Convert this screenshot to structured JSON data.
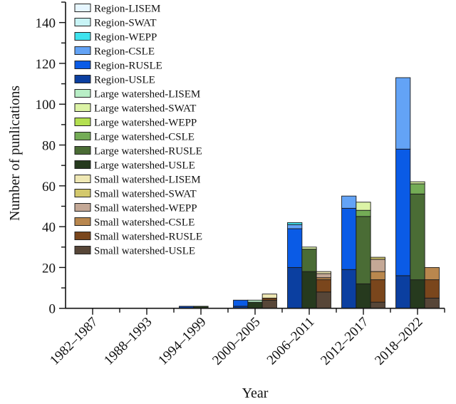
{
  "chart_data": {
    "type": "bar",
    "subtype": "grouped-stacked",
    "title": "",
    "xlabel": "Year",
    "ylabel": "Number of punlications",
    "ylim": [
      0,
      150
    ],
    "yticks": [
      0,
      20,
      40,
      60,
      80,
      100,
      120,
      140
    ],
    "y_minor_step": 10,
    "grid": false,
    "legend_placement": "top-left inside plot",
    "categories": [
      "1982–1987",
      "1988–1993",
      "1994–1999",
      "2000–2005",
      "2006–2011",
      "2012–2017",
      "2018–2022"
    ],
    "groups": [
      "Region",
      "Large watershed",
      "Small watershed"
    ],
    "models": [
      "USLE",
      "RUSLE",
      "CSLE",
      "WEPP",
      "SWAT",
      "LISEM"
    ],
    "legend": [
      {
        "label": "Region-LISEM",
        "color": "#e6f6ff"
      },
      {
        "label": "Region-SWAT",
        "color": "#c8f4f6"
      },
      {
        "label": "Region-WEPP",
        "color": "#3fe3ee"
      },
      {
        "label": "Region-CSLE",
        "color": "#63a3f6"
      },
      {
        "label": "Region-RUSLE",
        "color": "#0a5be6"
      },
      {
        "label": "Region-USLE",
        "color": "#0b3fa0"
      },
      {
        "label": "Large watershed-LISEM",
        "color": "#b8eec6"
      },
      {
        "label": "Large watershed-SWAT",
        "color": "#dcf3a6"
      },
      {
        "label": "Large watershed-WEPP",
        "color": "#b4e050"
      },
      {
        "label": "Large watershed-CSLE",
        "color": "#74ac56"
      },
      {
        "label": "Large watershed-RUSLE",
        "color": "#4a6c35"
      },
      {
        "label": "Large watershed-USLE",
        "color": "#263a1e"
      },
      {
        "label": "Small watershed-LISEM",
        "color": "#efe8b4"
      },
      {
        "label": "Small watershed-SWAT",
        "color": "#d3c86c"
      },
      {
        "label": "Small watershed-WEPP",
        "color": "#c4a896"
      },
      {
        "label": "Small watershed-CSLE",
        "color": "#b9874e"
      },
      {
        "label": "Small watershed-RUSLE",
        "color": "#7a461c"
      },
      {
        "label": "Small watershed-USLE",
        "color": "#574638"
      }
    ],
    "series": [
      {
        "name": "Region-USLE",
        "group": "Region",
        "values": [
          0,
          0,
          1,
          1,
          20,
          19,
          16
        ]
      },
      {
        "name": "Region-RUSLE",
        "group": "Region",
        "values": [
          0,
          0,
          0,
          3,
          19,
          30,
          62
        ]
      },
      {
        "name": "Region-CSLE",
        "group": "Region",
        "values": [
          0,
          0,
          0,
          0,
          2,
          6,
          35
        ]
      },
      {
        "name": "Region-WEPP",
        "group": "Region",
        "values": [
          0,
          0,
          0,
          0,
          1,
          0,
          0
        ]
      },
      {
        "name": "Region-SWAT",
        "group": "Region",
        "values": [
          0,
          0,
          0,
          0,
          0,
          0,
          0
        ]
      },
      {
        "name": "Region-LISEM",
        "group": "Region",
        "values": [
          0,
          0,
          0,
          0,
          0,
          0,
          0
        ]
      },
      {
        "name": "Large watershed-USLE",
        "group": "Large watershed",
        "values": [
          0,
          0,
          1,
          3,
          18,
          12,
          14
        ]
      },
      {
        "name": "Large watershed-RUSLE",
        "group": "Large watershed",
        "values": [
          0,
          0,
          0,
          0,
          11,
          33,
          42
        ]
      },
      {
        "name": "Large watershed-CSLE",
        "group": "Large watershed",
        "values": [
          0,
          0,
          0,
          0,
          0,
          3,
          5
        ]
      },
      {
        "name": "Large watershed-WEPP",
        "group": "Large watershed",
        "values": [
          0,
          0,
          0,
          0,
          0,
          0,
          0
        ]
      },
      {
        "name": "Large watershed-SWAT",
        "group": "Large watershed",
        "values": [
          0,
          0,
          0,
          0,
          1,
          4,
          1
        ]
      },
      {
        "name": "Large watershed-LISEM",
        "group": "Large watershed",
        "values": [
          0,
          0,
          0,
          1,
          0,
          0,
          0
        ]
      },
      {
        "name": "Small watershed-USLE",
        "group": "Small watershed",
        "values": [
          0,
          0,
          0,
          4,
          8,
          3,
          5
        ]
      },
      {
        "name": "Small watershed-RUSLE",
        "group": "Small watershed",
        "values": [
          0,
          0,
          0,
          1,
          6,
          11,
          9
        ]
      },
      {
        "name": "Small watershed-CSLE",
        "group": "Small watershed",
        "values": [
          0,
          0,
          0,
          0,
          1,
          4,
          6
        ]
      },
      {
        "name": "Small watershed-WEPP",
        "group": "Small watershed",
        "values": [
          0,
          0,
          0,
          0,
          2,
          6,
          0
        ]
      },
      {
        "name": "Small watershed-SWAT",
        "group": "Small watershed",
        "values": [
          0,
          0,
          0,
          0,
          0,
          1,
          0
        ]
      },
      {
        "name": "Small watershed-LISEM",
        "group": "Small watershed",
        "values": [
          0,
          0,
          0,
          2,
          1,
          0,
          0
        ]
      }
    ]
  }
}
